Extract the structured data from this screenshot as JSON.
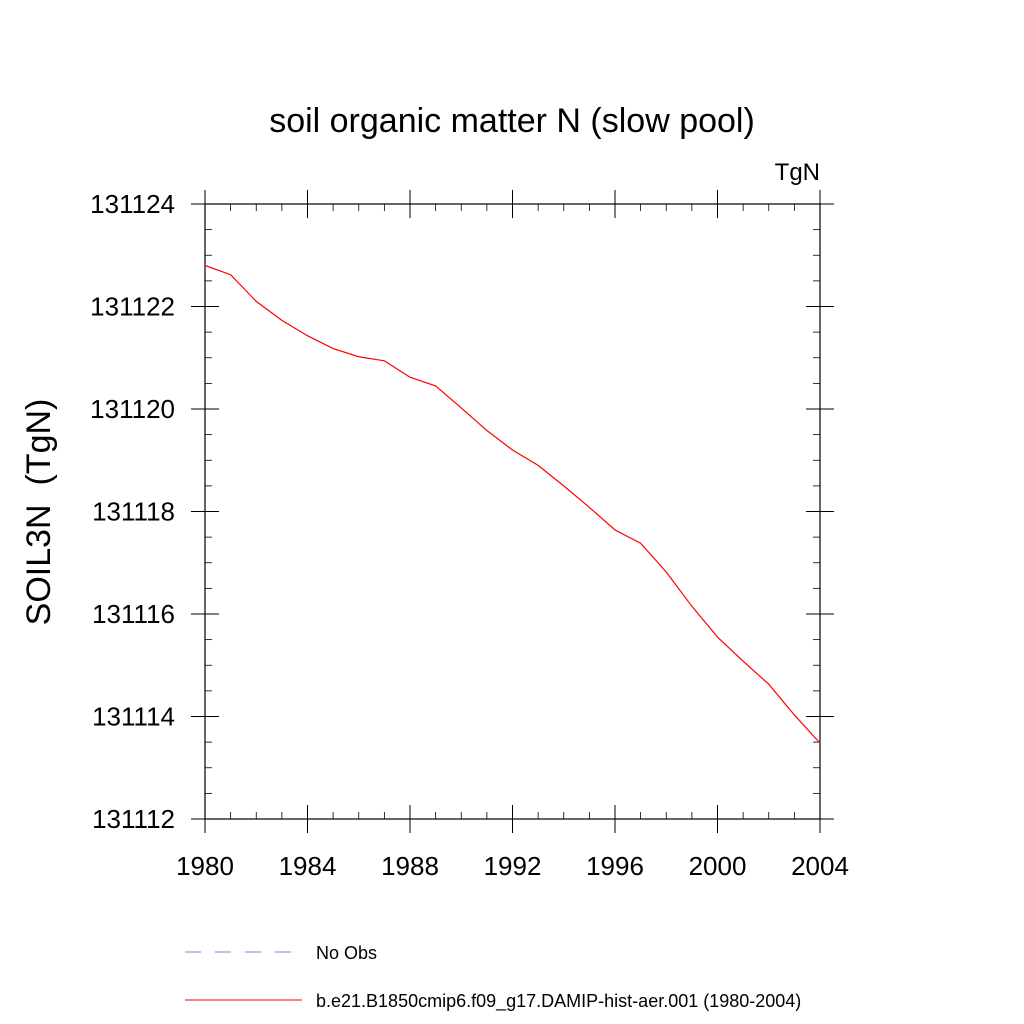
{
  "chart_data": {
    "type": "line",
    "title": "soil organic matter N (slow pool)",
    "units_label": "TgN",
    "ylabel": "SOIL3N  (TgN)",
    "xlabel": "",
    "xlim": [
      1980,
      2004
    ],
    "ylim": [
      131112,
      131124
    ],
    "x_ticks": [
      1980,
      1984,
      1988,
      1992,
      1996,
      2000,
      2004
    ],
    "x_tick_labels": [
      "1980",
      "1984",
      "1988",
      "1992",
      "1996",
      "2000",
      "2004"
    ],
    "y_ticks": [
      131112,
      131114,
      131116,
      131118,
      131120,
      131122,
      131124
    ],
    "y_tick_labels": [
      "131112",
      "131114",
      "131116",
      "131118",
      "131120",
      "131122",
      "131124"
    ],
    "grid": false,
    "legend_position": "bottom",
    "series": [
      {
        "name": "No Obs",
        "color": "#8a7fd0",
        "dash": "dashed",
        "x": [],
        "values": []
      },
      {
        "name": "b.e21.B1850cmip6.f09_g17.DAMIP-hist-aer.001 (1980-2004)",
        "color": "#ff0000",
        "dash": "solid",
        "x": [
          1980,
          1981,
          1982,
          1983,
          1984,
          1985,
          1986,
          1987,
          1988,
          1989,
          1990,
          1991,
          1992,
          1993,
          1994,
          1995,
          1996,
          1997,
          1998,
          1999,
          2000,
          2001,
          2002,
          2003,
          2004
        ],
        "values": [
          131122.8,
          131122.62,
          131122.1,
          131121.73,
          131121.43,
          131121.18,
          131121.02,
          131120.94,
          131120.62,
          131120.45,
          131120.02,
          131119.58,
          131119.2,
          131118.9,
          131118.5,
          131118.08,
          131117.64,
          131117.38,
          131116.82,
          131116.15,
          131115.55,
          131115.08,
          131114.63,
          131114.03,
          131113.48
        ]
      }
    ]
  }
}
